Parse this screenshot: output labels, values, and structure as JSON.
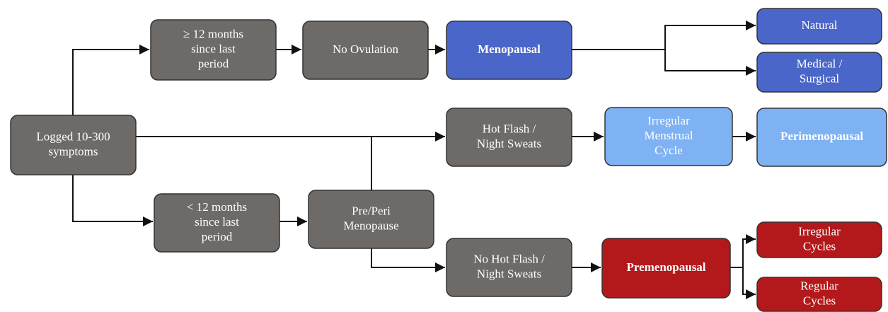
{
  "nodes": [
    {
      "lines": [
        "Logged 10-300",
        "symptoms"
      ]
    },
    {
      "lines": [
        "≥ 12 months",
        "since last",
        "period"
      ]
    },
    {
      "lines": [
        "No Ovulation"
      ]
    },
    {
      "lines": [
        "Menopausal"
      ]
    },
    {
      "lines": [
        "Natural"
      ]
    },
    {
      "lines": [
        "Medical /",
        "Surgical"
      ]
    },
    {
      "lines": [
        "Hot Flash /",
        "Night Sweats"
      ]
    },
    {
      "lines": [
        "Irregular",
        "Menstrual",
        "Cycle"
      ]
    },
    {
      "lines": [
        "Perimenopausal"
      ]
    },
    {
      "lines": [
        "< 12 months",
        "since last",
        "period"
      ]
    },
    {
      "lines": [
        "Pre/Peri",
        "Menopause"
      ]
    },
    {
      "lines": [
        "No Hot Flash /",
        "Night Sweats"
      ]
    },
    {
      "lines": [
        "Premenopausal"
      ]
    },
    {
      "lines": [
        "Irregular",
        "Cycles"
      ]
    },
    {
      "lines": [
        "Regular",
        "Cycles"
      ]
    }
  ]
}
